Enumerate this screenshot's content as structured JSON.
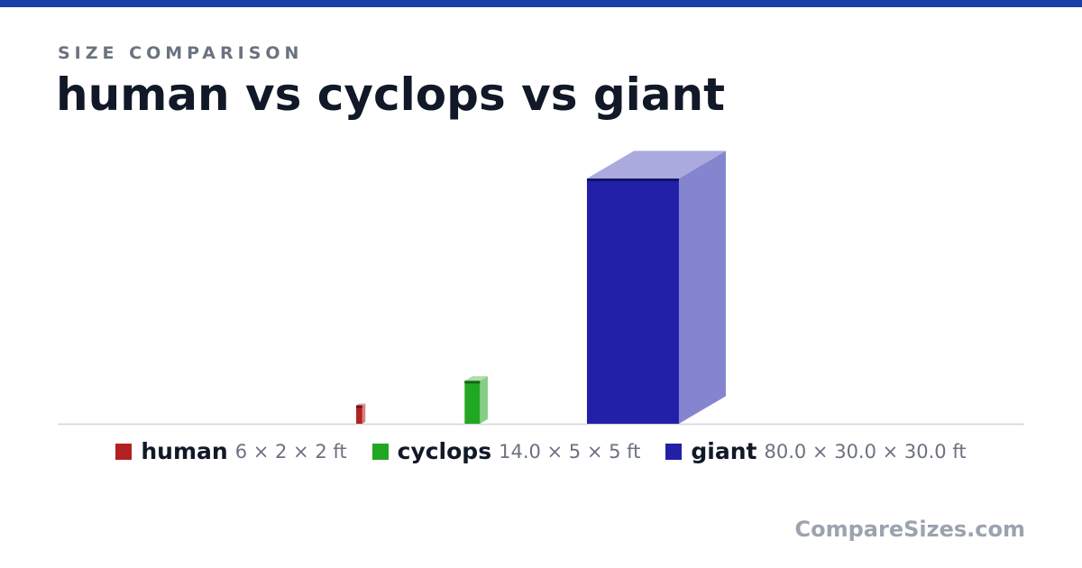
{
  "chart_data": {
    "type": "box3d",
    "kicker": "SIZE COMPARISON",
    "title": "human vs cyclops vs giant",
    "series": [
      {
        "name": "human",
        "color": "#b22222",
        "height": 6,
        "width": 2,
        "depth": 2,
        "label": "6 × 2 × 2 ft"
      },
      {
        "name": "cyclops",
        "color": "#22a722",
        "height": 14.0,
        "width": 5,
        "depth": 5,
        "label": "14.0 × 5 × 5 ft"
      },
      {
        "name": "giant",
        "color": "#2220a8",
        "height": 80.0,
        "width": 30.0,
        "depth": 30.0,
        "label": "80.0 × 30.0 × 30.0 ft"
      }
    ],
    "footer": "CompareSizes.com"
  }
}
